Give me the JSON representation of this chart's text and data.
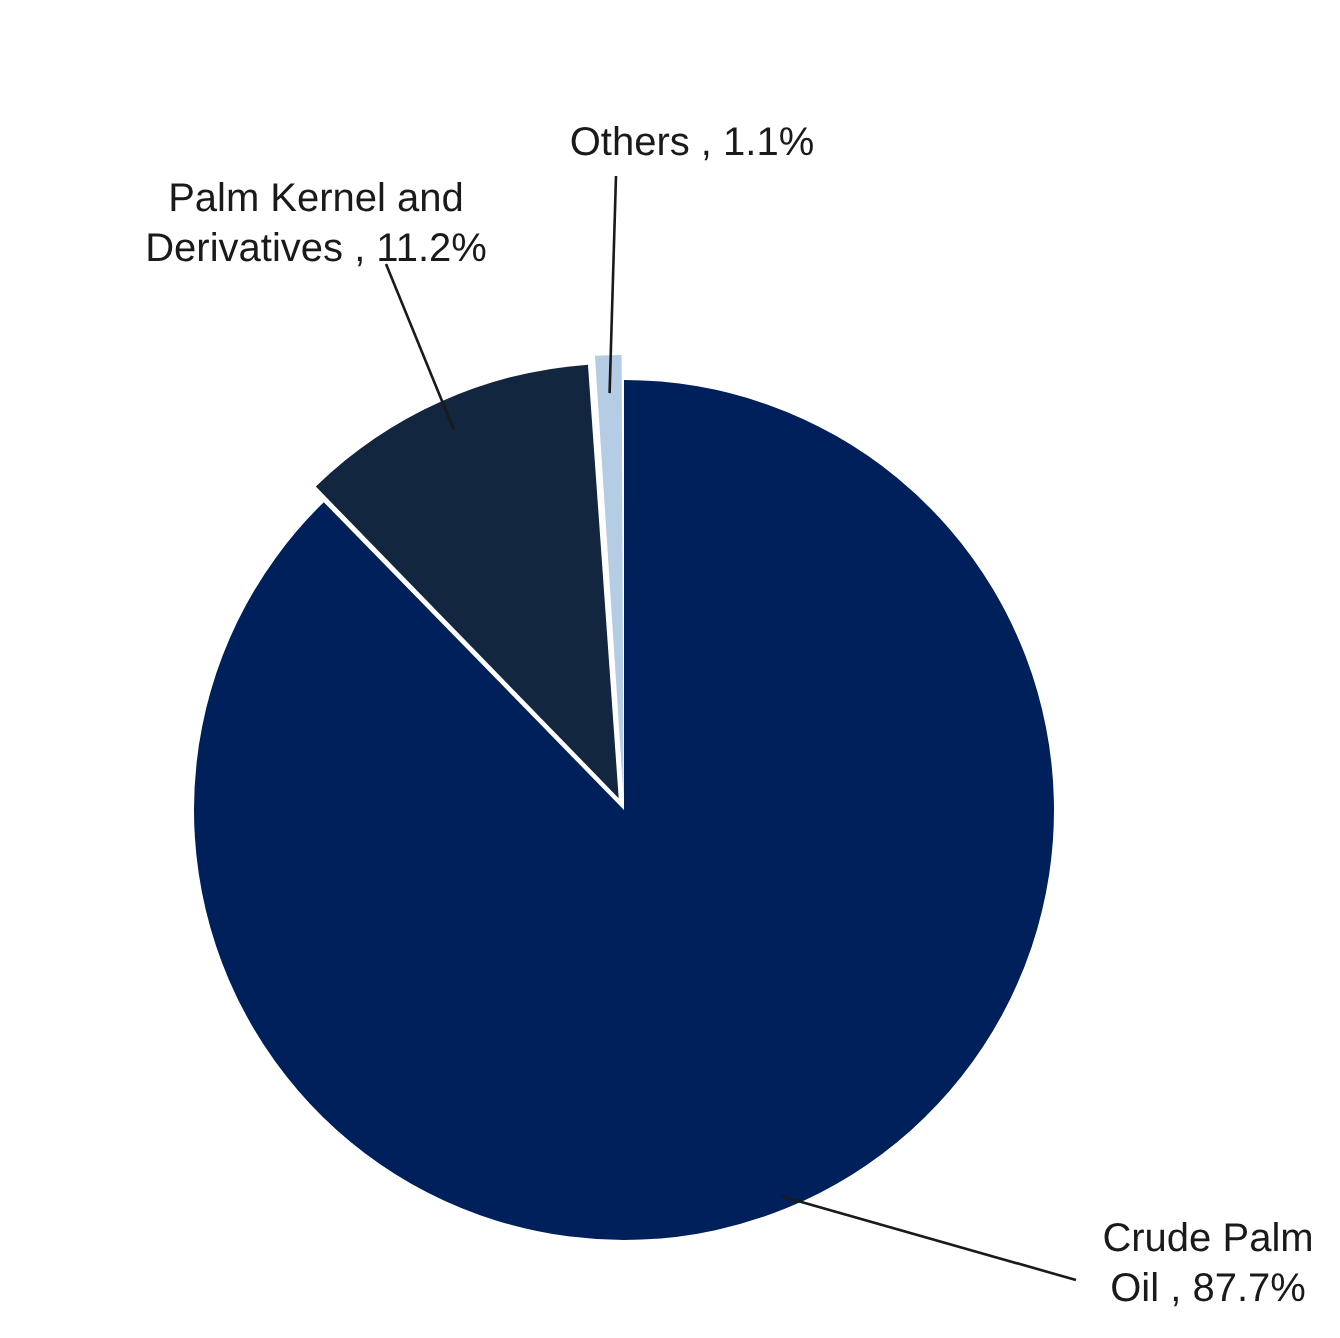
{
  "chart_data": {
    "type": "pie",
    "categories": [
      "Crude Palm Oil",
      "Palm Kernel and Derivatives",
      "Others"
    ],
    "values": [
      87.7,
      11.2,
      1.1
    ],
    "value_labels": [
      "87.7%",
      "11.2%",
      "1.1%"
    ],
    "colors": [
      "#00205b",
      "#13263f",
      "#b4cde4"
    ],
    "legend": false
  }
}
